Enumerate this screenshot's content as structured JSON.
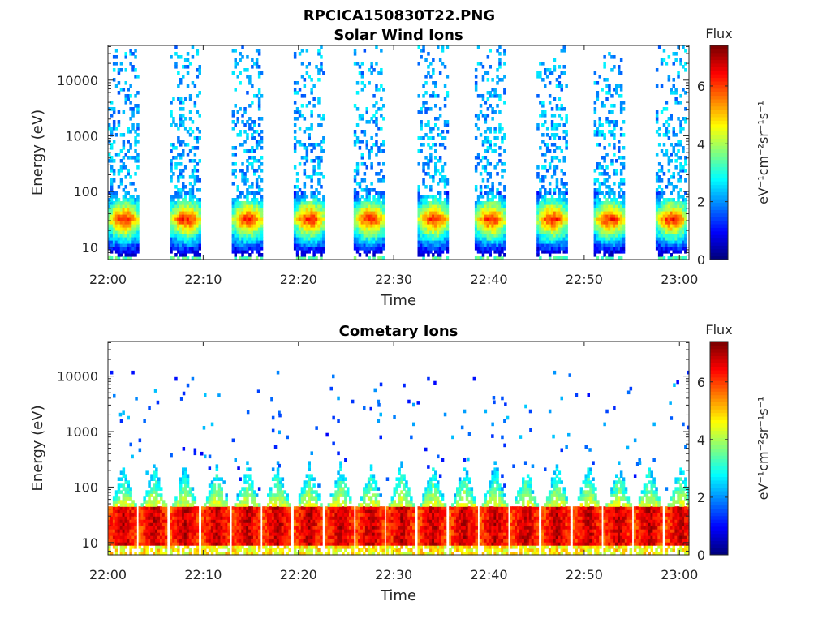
{
  "figure_title": "RPCICA150830T22.PNG",
  "chart_data": [
    {
      "type": "heatmap",
      "title": "Solar Wind Ions",
      "xlabel": "Time",
      "ylabel": "Energy (eV)",
      "x_ticks": [
        "22:00",
        "22:10",
        "22:20",
        "22:30",
        "22:40",
        "22:50",
        "23:00"
      ],
      "xlim": [
        "22:00",
        "23:01"
      ],
      "y_scale": "log",
      "y_ticks": [
        "10",
        "100",
        "1000",
        "10000"
      ],
      "ylim": [
        6,
        42000
      ],
      "colorbar": {
        "label": "Flux",
        "unit": "eV⁻¹cm⁻²sr⁻¹s⁻¹",
        "ticks": [
          "0",
          "2",
          "4",
          "6"
        ],
        "range": [
          0,
          7.4
        ],
        "colormap": "jet"
      },
      "burst_start_minutes": [
        0.0,
        6.5,
        13.0,
        19.5,
        25.8,
        32.5,
        38.5,
        45.0,
        51.0,
        57.5
      ],
      "burst_duration_minutes": 3.2,
      "core_energy_range_eV": [
        15,
        60
      ],
      "core_flux": 5.5,
      "sparse_energy_range_eV": [
        100,
        30000
      ],
      "sparse_flux": 1.5
    },
    {
      "type": "heatmap",
      "title": "Cometary Ions",
      "xlabel": "Time",
      "ylabel": "Energy (eV)",
      "x_ticks": [
        "22:00",
        "22:10",
        "22:20",
        "22:30",
        "22:40",
        "22:50",
        "23:00"
      ],
      "xlim": [
        "22:00",
        "23:01"
      ],
      "y_scale": "log",
      "y_ticks": [
        "10",
        "100",
        "1000",
        "10000"
      ],
      "ylim": [
        6,
        42000
      ],
      "colorbar": {
        "label": "Flux",
        "unit": "eV⁻¹cm⁻²sr⁻¹s⁻¹",
        "ticks": [
          "0",
          "2",
          "4",
          "6"
        ],
        "range": [
          0,
          7.4
        ],
        "colormap": "jet"
      },
      "burst_start_minutes": [
        0.0,
        3.2,
        6.5,
        9.8,
        13.0,
        16.2,
        19.5,
        22.8,
        26.0,
        29.2,
        32.5,
        35.8,
        39.0,
        42.2,
        45.5,
        48.8,
        52.0,
        55.2,
        58.5
      ],
      "burst_duration_minutes": 3.0,
      "core_energy_range_eV": [
        10,
        42
      ],
      "core_flux": 7.0,
      "upper_edge_eV": 42,
      "spike_peak_energy_eV": [
        200,
        300
      ],
      "sparse_energy_range_eV": [
        300,
        11000
      ],
      "sparse_flux": 1.0
    }
  ]
}
